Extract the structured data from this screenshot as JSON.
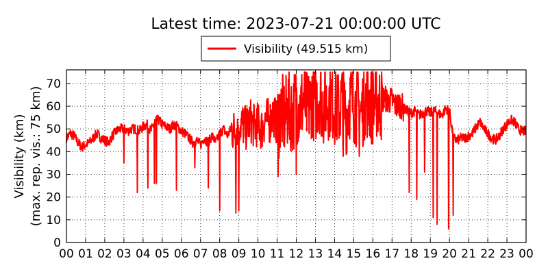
{
  "chart_data": {
    "type": "line",
    "title": "Latest time: 2023-07-21 00:00:00 UTC",
    "ylabel_line1": "Visibility (km)",
    "ylabel_line2": "(max. rep. vis.: 75 km)",
    "xlabel": "",
    "ylim": [
      0,
      76
    ],
    "xlim": [
      0,
      24
    ],
    "grid": true,
    "legend_position": "top-center",
    "yticks": [
      0,
      10,
      20,
      30,
      40,
      50,
      60,
      70
    ],
    "xticks": [
      "00",
      "01",
      "02",
      "03",
      "04",
      "05",
      "06",
      "07",
      "08",
      "09",
      "10",
      "11",
      "12",
      "13",
      "14",
      "15",
      "16",
      "17",
      "18",
      "19",
      "20",
      "21",
      "22",
      "23",
      "00"
    ],
    "series": [
      {
        "name": "Visibility (49.515 km)",
        "color": "#ff0000",
        "x": [
          0.0,
          0.2,
          0.4,
          0.6,
          0.8,
          1.0,
          1.2,
          1.4,
          1.6,
          1.8,
          2.0,
          2.2,
          2.4,
          2.6,
          2.8,
          3.0,
          3.2,
          3.4,
          3.6,
          3.8,
          4.0,
          4.2,
          4.4,
          4.6,
          4.8,
          5.0,
          5.2,
          5.4,
          5.6,
          5.8,
          6.0,
          6.2,
          6.4,
          6.6,
          6.8,
          7.0,
          7.2,
          7.4,
          7.6,
          7.8,
          8.0,
          8.2,
          8.4,
          8.6,
          8.8,
          9.0,
          9.2,
          9.4,
          9.6,
          9.8,
          10.0,
          10.2,
          10.4,
          10.6,
          10.8,
          11.0,
          11.2,
          11.4,
          11.6,
          11.8,
          12.0,
          12.2,
          12.4,
          12.6,
          12.8,
          13.0,
          13.2,
          13.4,
          13.6,
          13.8,
          14.0,
          14.2,
          14.4,
          14.6,
          14.8,
          15.0,
          15.2,
          15.4,
          15.6,
          15.8,
          16.0,
          16.2,
          16.4,
          16.6,
          16.8,
          17.0,
          17.2,
          17.4,
          17.6,
          17.8,
          18.0,
          18.2,
          18.4,
          18.6,
          18.8,
          19.0,
          19.2,
          19.4,
          19.6,
          19.8,
          20.0,
          20.2,
          20.4,
          20.6,
          20.8,
          21.0,
          21.2,
          21.4,
          21.6,
          21.8,
          22.0,
          22.2,
          22.4,
          22.6,
          22.8,
          23.0,
          23.2,
          23.4,
          23.6,
          23.8,
          24.0
        ],
        "values": [
          46,
          48,
          47,
          44,
          42,
          43,
          44,
          46,
          48,
          46,
          45,
          44,
          47,
          49,
          50,
          50,
          49,
          50,
          50,
          49,
          51,
          52,
          49,
          53,
          54,
          52,
          51,
          50,
          52,
          51,
          49,
          48,
          46,
          44,
          45,
          43,
          46,
          44,
          47,
          44,
          48,
          50,
          47,
          50,
          49,
          53,
          52,
          50,
          54,
          51,
          52,
          50,
          55,
          53,
          57,
          52,
          58,
          54,
          60,
          56,
          62,
          59,
          63,
          57,
          64,
          61,
          66,
          60,
          62,
          64,
          60,
          58,
          62,
          56,
          63,
          61,
          59,
          57,
          64,
          62,
          60,
          63,
          61,
          64,
          62,
          63,
          60,
          61,
          59,
          58,
          57,
          58,
          56,
          57,
          58,
          57,
          58,
          57,
          56,
          59,
          58,
          46,
          45,
          46,
          46,
          47,
          48,
          51,
          53,
          50,
          48,
          46,
          45,
          47,
          50,
          52,
          54,
          53,
          50,
          49,
          49
        ]
      }
    ],
    "drops": [
      {
        "x": 3.0,
        "y": 35
      },
      {
        "x": 3.7,
        "y": 22
      },
      {
        "x": 4.25,
        "y": 24
      },
      {
        "x": 4.6,
        "y": 26
      },
      {
        "x": 4.7,
        "y": 26
      },
      {
        "x": 5.75,
        "y": 23
      },
      {
        "x": 6.7,
        "y": 33
      },
      {
        "x": 7.4,
        "y": 24
      },
      {
        "x": 8.0,
        "y": 14
      },
      {
        "x": 8.85,
        "y": 13
      },
      {
        "x": 9.0,
        "y": 14
      },
      {
        "x": 11.05,
        "y": 29
      },
      {
        "x": 12.0,
        "y": 30
      },
      {
        "x": 14.45,
        "y": 38
      },
      {
        "x": 15.3,
        "y": 38
      },
      {
        "x": 17.9,
        "y": 22
      },
      {
        "x": 18.3,
        "y": 19
      },
      {
        "x": 18.7,
        "y": 31
      },
      {
        "x": 19.15,
        "y": 11
      },
      {
        "x": 19.35,
        "y": 8
      },
      {
        "x": 19.95,
        "y": 6
      },
      {
        "x": 20.2,
        "y": 12
      }
    ],
    "noise_bands": [
      {
        "from": 8.6,
        "to": 11.0,
        "amp": 10
      },
      {
        "from": 11.0,
        "to": 16.5,
        "amp": 18
      },
      {
        "from": 16.5,
        "to": 17.6,
        "amp": 6
      }
    ]
  }
}
